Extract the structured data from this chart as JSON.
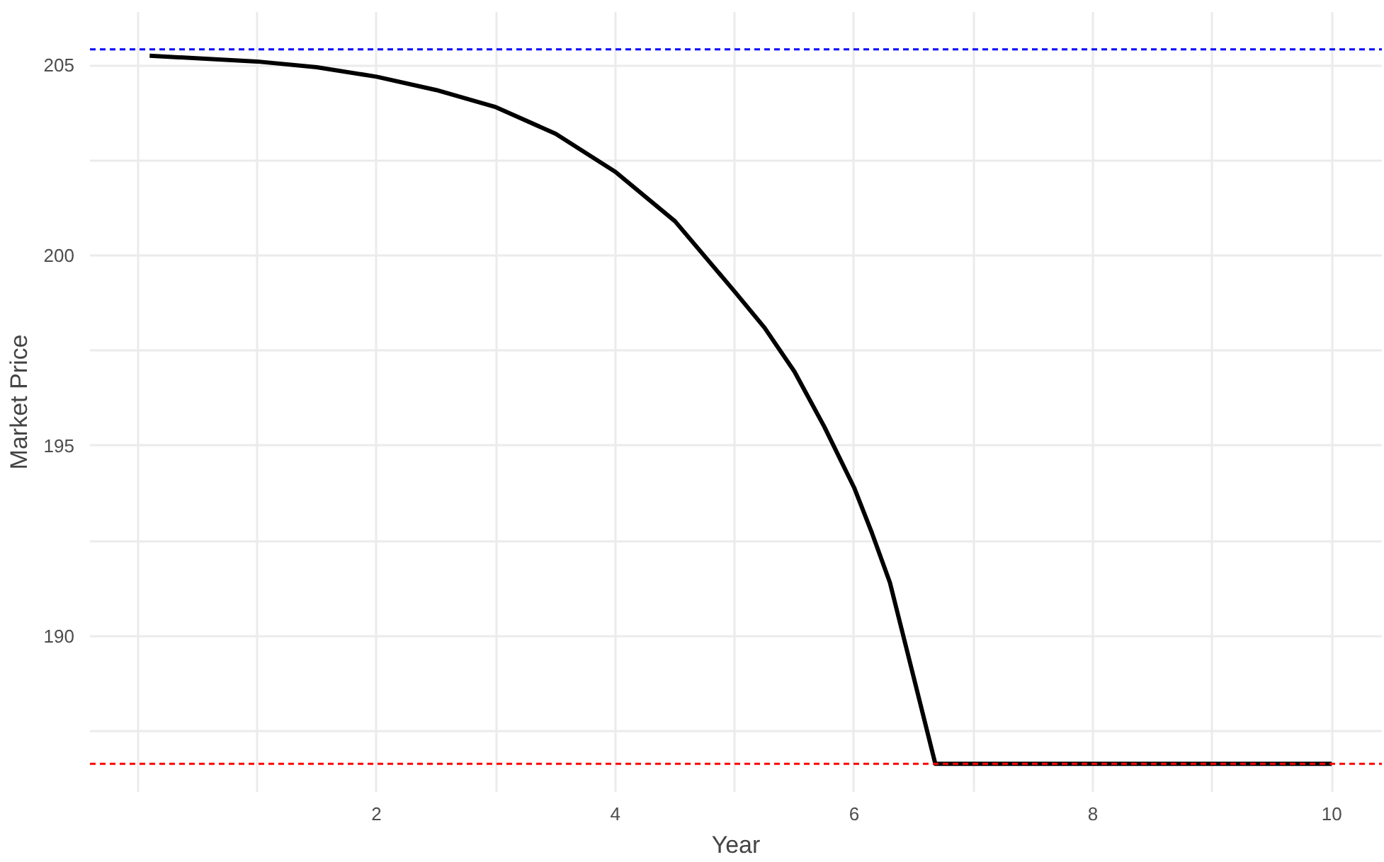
{
  "chart_data": {
    "type": "line",
    "xlabel": "Year",
    "ylabel": "Market Price",
    "x": [
      0.1,
      1,
      1.5,
      2,
      2.5,
      3,
      3.5,
      4,
      4.5,
      5,
      5.25,
      5.5,
      5.75,
      6,
      6.15,
      6.3,
      6.5,
      6.68,
      7,
      8,
      9,
      10
    ],
    "series": [
      {
        "color": "#000000",
        "values": [
          205.25,
          205.1,
          204.95,
          204.7,
          204.35,
          203.9,
          203.2,
          202.2,
          200.9,
          199.05,
          198.1,
          196.95,
          195.5,
          193.9,
          192.7,
          191.4,
          188.9,
          186.64,
          186.64,
          186.64,
          186.64,
          186.64
        ]
      }
    ],
    "xlim": [
      -0.4,
      10.42
    ],
    "ylim": [
      185.9,
      206.4
    ],
    "xticks": [
      {
        "value": 0,
        "label": null
      },
      {
        "value": 1,
        "label": null
      },
      2,
      {
        "value": 3,
        "label": null
      },
      4,
      {
        "value": 5,
        "label": null
      },
      6,
      {
        "value": 7,
        "label": null
      },
      8,
      {
        "value": 9,
        "label": null
      },
      10
    ],
    "yticks": [
      {
        "value": 187.5,
        "label": null
      },
      190,
      {
        "value": 192.5,
        "label": null
      },
      195,
      {
        "value": 197.5,
        "label": null
      },
      200,
      {
        "value": 202.5,
        "label": null
      },
      205
    ],
    "ref_lines": [
      {
        "axis": "y",
        "value": 205.42,
        "color": "#0000ff",
        "line_style": "dashed"
      },
      {
        "axis": "y",
        "value": 186.64,
        "color": "#ff0000",
        "line_style": "dashed"
      }
    ],
    "grid": true,
    "line_style": "solid",
    "marker": "none"
  }
}
